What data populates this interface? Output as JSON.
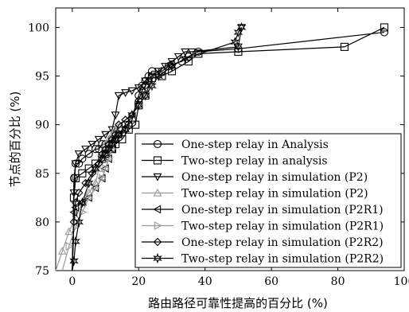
{
  "chart_data": {
    "type": "line",
    "title": "",
    "xlabel": "路由路径可靠性提高的百分比 (%)",
    "ylabel": "节点的百分比 (%)",
    "xlim": [
      -5,
      100
    ],
    "ylim": [
      75,
      102
    ],
    "xticks": [
      "0",
      "20",
      "40",
      "60",
      "80",
      "100"
    ],
    "xtick_values": [
      0,
      20,
      40,
      60,
      80,
      100
    ],
    "yticks": [
      "75",
      "80",
      "85",
      "90",
      "95",
      "100"
    ],
    "ytick_values": [
      75,
      80,
      85,
      90,
      95,
      100
    ],
    "grid": false,
    "legend_position": "lower-right",
    "series": [
      {
        "name": "One-step relay in Analysis",
        "marker": "circle",
        "color": "#000000",
        "x": [
          0,
          0.5,
          1,
          2,
          3,
          5,
          7,
          8,
          9,
          10,
          12,
          13,
          14,
          15,
          16,
          17,
          18,
          20,
          21,
          22,
          23,
          24,
          27,
          29,
          30,
          33,
          35,
          38,
          50,
          94
        ],
        "y": [
          75,
          84.5,
          86,
          86,
          86.5,
          87,
          87.5,
          87.5,
          88,
          88,
          88.5,
          88.5,
          89,
          89.5,
          90,
          90,
          90.5,
          93,
          94,
          94.5,
          95,
          95.5,
          95.5,
          96,
          96.2,
          96.5,
          97,
          97.5,
          97.8,
          99.5
        ]
      },
      {
        "name": "Two-step relay in analysis",
        "marker": "square",
        "color": "#000000",
        "x": [
          0,
          0.5,
          1,
          3,
          5,
          7,
          9,
          10,
          12,
          13,
          15,
          17,
          19,
          20,
          22,
          24,
          27,
          30,
          35,
          38,
          50,
          82,
          94
        ],
        "y": [
          75,
          82.5,
          84.5,
          85,
          85.5,
          86,
          86.5,
          87,
          87.5,
          88,
          88.5,
          89.5,
          90,
          92,
          93,
          94.8,
          95,
          95.5,
          96.5,
          97.3,
          97.5,
          98,
          100
        ]
      },
      {
        "name": "One-step relay in simulation (P2)",
        "marker": "triangle-down",
        "color": "#000000",
        "x": [
          0,
          0.5,
          1,
          2,
          4,
          6,
          8,
          10,
          12,
          13,
          14,
          16,
          18,
          20,
          22,
          24,
          26,
          28,
          30,
          32,
          34,
          36,
          50,
          51
        ],
        "y": [
          75,
          83,
          86,
          87,
          87.5,
          88,
          88.5,
          89,
          89.5,
          91,
          93,
          93.3,
          93.5,
          93.8,
          94.5,
          95,
          95.5,
          96,
          96.5,
          97,
          97.5,
          97.5,
          98,
          100
        ]
      },
      {
        "name": "Two-step relay in simulation (P2)",
        "marker": "triangle-up",
        "color": "#999999",
        "x": [
          -5,
          -3,
          -1,
          1,
          3,
          5,
          7,
          8,
          9,
          10,
          11,
          12,
          13,
          14
        ],
        "y": [
          75,
          77,
          79,
          80.5,
          82,
          83,
          84,
          85.5,
          87,
          88,
          88.5,
          89,
          89.5,
          90
        ]
      },
      {
        "name": "One-step relay in simulation (P2R1)",
        "marker": "triangle-left",
        "color": "#000000",
        "x": [
          0,
          0.5,
          1,
          3,
          5,
          7,
          9,
          10,
          11,
          12,
          13,
          14
        ],
        "y": [
          75,
          81,
          81.5,
          82,
          82.5,
          83.5,
          84.5,
          85.5,
          86.5,
          87.5,
          88.5,
          89
        ]
      },
      {
        "name": "Two-step relay in simulation (P2R1)",
        "marker": "triangle-right",
        "color": "#999999",
        "x": [
          -3,
          -1,
          1,
          3,
          5,
          7,
          9,
          10,
          11,
          12,
          13
        ],
        "y": [
          75,
          77.5,
          79.5,
          81,
          82.5,
          83.5,
          84.5,
          85.5,
          86.5,
          87.5,
          88.5
        ]
      },
      {
        "name": "One-step relay in simulation (P2R2)",
        "marker": "diamond",
        "color": "#000000",
        "x": [
          0,
          0.5,
          1,
          2,
          4,
          6,
          8,
          9,
          10,
          11,
          12,
          13,
          14,
          16,
          18,
          20,
          21,
          22,
          23
        ],
        "y": [
          75,
          80,
          82,
          83,
          84,
          85,
          86,
          87,
          87.5,
          88,
          88.5,
          89,
          90,
          90.5,
          91,
          92.5,
          93.5,
          94,
          94.5
        ]
      },
      {
        "name": "Two-step relay in simulation (P2R2)",
        "marker": "star",
        "color": "#000000",
        "x": [
          0,
          0.5,
          1,
          2,
          3,
          5,
          7,
          9,
          10,
          11,
          12,
          13,
          14,
          16,
          18,
          20,
          22,
          24,
          26,
          30,
          34,
          49,
          50,
          51
        ],
        "y": [
          75,
          76,
          78,
          80,
          82,
          84,
          85.5,
          86.5,
          87,
          87.5,
          88,
          88.5,
          89,
          89.5,
          91,
          92,
          93,
          94,
          95,
          96,
          96.8,
          98.5,
          99.5,
          100
        ]
      }
    ]
  }
}
